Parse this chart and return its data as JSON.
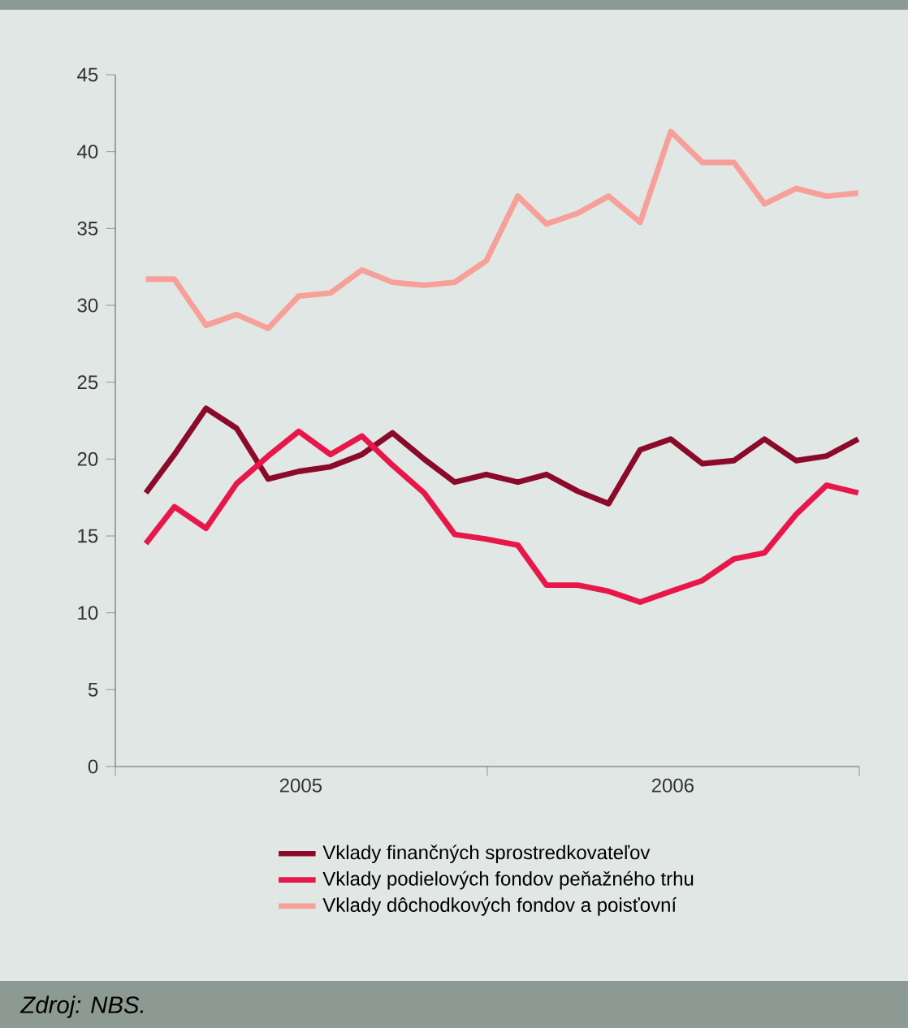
{
  "chart_data": {
    "type": "line",
    "x": [
      "2005-01-31",
      "2005-02-28",
      "2005-03-31",
      "2005-04-30",
      "2005-05-31",
      "2005-06-30",
      "2005-07-31",
      "2005-08-31",
      "2005-09-30",
      "2005-10-31",
      "2005-11-30",
      "2005-12-31",
      "2006-01-31",
      "2006-02-28",
      "2006-03-31",
      "2006-04-30",
      "2006-05-31",
      "2006-06-30",
      "2006-07-31",
      "2006-08-31",
      "2006-09-30",
      "2006-10-31",
      "2006-11-30",
      "2006-12-31"
    ],
    "series": [
      {
        "name": "Vklady finančných sprostredkovateľov",
        "color": "#8b0a2a",
        "values": [
          17.8,
          20.3,
          23.3,
          22.0,
          18.7,
          19.2,
          19.5,
          20.3,
          21.7,
          20.0,
          18.5,
          19.0,
          18.5,
          19.0,
          17.9,
          17.1,
          20.6,
          21.3,
          19.7,
          19.9,
          21.3,
          19.9,
          20.2,
          21.3
        ]
      },
      {
        "name": "Vklady podielových fondov peňažného trhu",
        "color": "#e8174a",
        "values": [
          14.5,
          16.9,
          15.5,
          18.4,
          20.2,
          21.8,
          20.3,
          21.5,
          19.6,
          17.8,
          15.1,
          14.8,
          14.4,
          11.8,
          11.8,
          11.4,
          10.7,
          11.4,
          12.1,
          13.5,
          13.9,
          16.4,
          18.3,
          17.8
        ]
      },
      {
        "name": "Vklady dôchodkových fondov a poisťovní",
        "color": "#f7a09a",
        "values": [
          31.7,
          31.7,
          28.7,
          29.4,
          28.5,
          30.6,
          30.8,
          32.3,
          31.5,
          31.3,
          31.5,
          32.9,
          37.1,
          35.3,
          36.0,
          37.1,
          35.4,
          41.3,
          39.3,
          39.3,
          36.6,
          37.6,
          37.1,
          37.3
        ]
      }
    ],
    "xlim": [
      "2005-01-01",
      "2007-01-01"
    ],
    "xticks": [
      {
        "value": "2005-01-01",
        "label": null
      },
      {
        "value": "2005-07-02",
        "label": "2005"
      },
      {
        "value": "2006-01-01",
        "label": null
      },
      {
        "value": "2006-07-02",
        "label": "2006"
      },
      {
        "value": "2007-01-01",
        "label": null
      }
    ],
    "ylim": [
      0,
      45
    ],
    "yticks": [
      0,
      5,
      10,
      15,
      20,
      25,
      30,
      35,
      40,
      45
    ],
    "grid": false,
    "legend": "bottom",
    "marker": "none",
    "line_style": "solid",
    "annotations": [
      "Zdroj: NBS."
    ]
  }
}
